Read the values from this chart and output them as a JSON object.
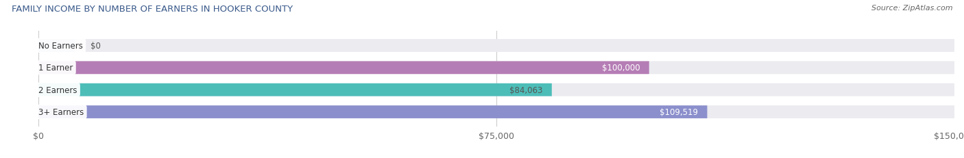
{
  "title": "FAMILY INCOME BY NUMBER OF EARNERS IN HOOKER COUNTY",
  "source": "Source: ZipAtlas.com",
  "categories": [
    "No Earners",
    "1 Earner",
    "2 Earners",
    "3+ Earners"
  ],
  "values": [
    0,
    100000,
    84063,
    109519
  ],
  "bar_colors": [
    "#9bbfe0",
    "#b57db5",
    "#4dbdb8",
    "#8b8fcc"
  ],
  "label_colors": [
    "#444444",
    "#ffffff",
    "#ffffff",
    "#ffffff"
  ],
  "value_label_colors": [
    "#555555",
    "#ffffff",
    "#555555",
    "#ffffff"
  ],
  "xlim": [
    0,
    150000
  ],
  "xtick_vals": [
    0,
    75000,
    150000
  ],
  "xtick_labels": [
    "$0",
    "$75,000",
    "$150,000"
  ],
  "bg_color": "#ffffff",
  "bar_bg_color": "#ebebf0",
  "value_labels": [
    "$0",
    "$100,000",
    "$84,063",
    "$109,519"
  ],
  "figsize": [
    14.06,
    2.32
  ],
  "dpi": 100
}
